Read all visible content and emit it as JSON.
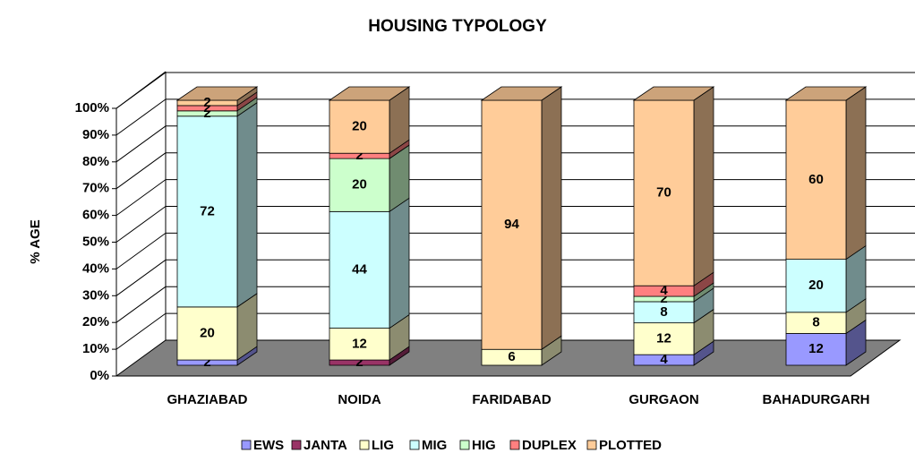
{
  "chart_data": {
    "type": "stacked-bar-3d",
    "title": "HOUSING TYPOLOGY",
    "y_label": "% AGE",
    "categories": [
      "GHAZIABAD",
      "NOIDA",
      "FARIDABAD",
      "GURGAON",
      "BAHADURGARH"
    ],
    "series": [
      {
        "name": "EWS",
        "color": "#9999ff",
        "values": [
          2,
          null,
          null,
          4,
          12
        ]
      },
      {
        "name": "JANTA",
        "color": "#993366",
        "values": [
          null,
          2,
          null,
          null,
          null
        ]
      },
      {
        "name": "LIG",
        "color": "#ffffcc",
        "values": [
          20,
          12,
          6,
          12,
          8
        ]
      },
      {
        "name": "MIG",
        "color": "#ccffff",
        "values": [
          72,
          44,
          null,
          8,
          20
        ]
      },
      {
        "name": "HIG",
        "color": "#ccffcc",
        "values": [
          2,
          20,
          null,
          2,
          null
        ]
      },
      {
        "name": "DUPLEX",
        "color": "#ff8080",
        "values": [
          2,
          2,
          null,
          4,
          null
        ]
      },
      {
        "name": "PLOTTED",
        "color": "#ffcc99",
        "values": [
          2,
          20,
          94,
          70,
          60
        ]
      }
    ],
    "ylim": [
      0,
      100
    ],
    "yticks": [
      {
        "value": 0,
        "label": "0%"
      },
      {
        "value": 10,
        "label": "10%"
      },
      {
        "value": 20,
        "label": "20%"
      },
      {
        "value": 30,
        "label": "30%"
      },
      {
        "value": 40,
        "label": "40%"
      },
      {
        "value": 50,
        "label": "50%"
      },
      {
        "value": 60,
        "label": "60%"
      },
      {
        "value": 70,
        "label": "70%"
      },
      {
        "value": 80,
        "label": "80%"
      },
      {
        "value": 90,
        "label": "90%"
      },
      {
        "value": 100,
        "label": "100%"
      }
    ],
    "grid": true,
    "legend": "bottom"
  }
}
